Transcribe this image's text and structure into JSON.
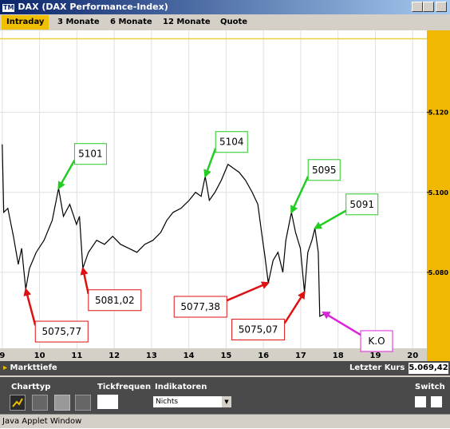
{
  "window": {
    "icon": "TM",
    "title": "DAX (DAX Performance-Index)"
  },
  "tabs": [
    "Intraday",
    "3 Monate",
    "6 Monate",
    "12 Monate",
    "Quote"
  ],
  "status_bar": {
    "left": "Markttiefe",
    "right_label": "Letzter Kurs",
    "right_value": "5.069,42"
  },
  "toolbar": {
    "charttyp": "Charttyp",
    "tickfrequenz": "Tickfrequen",
    "indikatoren": "Indikatoren",
    "indicator_value": "Nichts",
    "switch": "Switch"
  },
  "footer": "Java Applet Window",
  "chart_data": {
    "type": "line",
    "color": "#000000",
    "grid": true,
    "x": [
      9.0,
      9.04,
      9.15,
      9.3,
      9.43,
      9.52,
      9.63,
      9.73,
      9.91,
      10.12,
      10.34,
      10.51,
      10.64,
      10.81,
      10.99,
      11.07,
      11.16,
      11.31,
      11.53,
      11.74,
      11.96,
      12.17,
      12.39,
      12.61,
      12.82,
      13.04,
      13.25,
      13.41,
      13.58,
      13.79,
      14.01,
      14.18,
      14.33,
      14.44,
      14.55,
      14.7,
      14.87,
      15.05,
      15.2,
      15.35,
      15.52,
      15.7,
      15.85,
      15.95,
      16.04,
      16.13,
      16.26,
      16.39,
      16.52,
      16.6,
      16.75,
      16.86,
      16.99,
      17.1,
      17.19,
      17.3,
      17.38,
      17.47,
      17.51,
      17.6,
      17.68,
      17.79
    ],
    "values": [
      5112,
      5095,
      5096,
      5089,
      5082,
      5086,
      5075.77,
      5081,
      5085,
      5088,
      5093,
      5101,
      5094,
      5097,
      5092,
      5094,
      5081.02,
      5085,
      5088,
      5087,
      5089,
      5087,
      5086,
      5085,
      5087,
      5088,
      5090,
      5093,
      5095,
      5096,
      5098,
      5100,
      5099,
      5104,
      5098,
      5100,
      5103,
      5107,
      5106,
      5105,
      5103,
      5100,
      5097,
      5090,
      5084,
      5077.38,
      5083,
      5085,
      5080,
      5088,
      5095,
      5090,
      5086,
      5075.07,
      5085,
      5088,
      5091,
      5085,
      5069,
      5069.4,
      5070,
      5070
    ],
    "xlim": [
      8.94,
      20.38
    ],
    "xticks": [
      9,
      10,
      11,
      12,
      13,
      14,
      15,
      16,
      17,
      18,
      19,
      20
    ],
    "ylim": [
      5061,
      5140.5
    ],
    "yticks": [
      {
        "value": 5080,
        "label": "5.080"
      },
      {
        "value": 5100,
        "label": "5.100"
      },
      {
        "value": 5120,
        "label": "5.120"
      }
    ],
    "reference_line": {
      "value": 5138.4,
      "color": "#e8d040"
    },
    "annotations": [
      {
        "text": "5101",
        "x": 10.51,
        "value": 5101,
        "color": "#22cc22"
      },
      {
        "text": "5075,77",
        "x": 9.63,
        "value": 5075.77,
        "color": "#dd1111"
      },
      {
        "text": "5081,02",
        "x": 11.16,
        "value": 5081.02,
        "color": "#dd1111"
      },
      {
        "text": "5104",
        "x": 14.44,
        "value": 5104,
        "color": "#22cc22"
      },
      {
        "text": "5077,38",
        "x": 16.13,
        "value": 5077.38,
        "color": "#dd1111"
      },
      {
        "text": "5095",
        "x": 16.75,
        "value": 5095,
        "color": "#22cc22"
      },
      {
        "text": "5075,07",
        "x": 17.1,
        "value": 5075.07,
        "color": "#dd1111"
      },
      {
        "text": "5091",
        "x": 17.38,
        "value": 5091,
        "color": "#22cc22"
      },
      {
        "text": "K.O",
        "x": 17.6,
        "value": 5070,
        "color": "#dd22dd"
      }
    ]
  }
}
